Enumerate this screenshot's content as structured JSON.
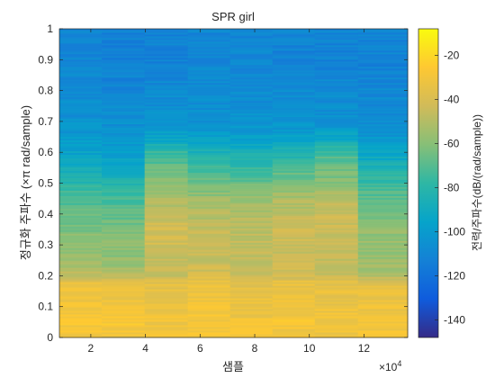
{
  "chart_data": {
    "type": "heatmap",
    "title": "SPR girl",
    "xlabel": "샘플",
    "ylabel": "정규화 주파수 (×π rad/sample)",
    "colorbar_label": "전력/주파수(dB/(rad/sample))",
    "x_exponent_label": "×10",
    "x_exponent_power": "4",
    "x_ticks": [
      2,
      4,
      6,
      8,
      10,
      12
    ],
    "x_tick_labels": [
      "2",
      "4",
      "6",
      "8",
      "10",
      "12"
    ],
    "xlim": [
      0.85,
      13.6
    ],
    "y_ticks": [
      0,
      0.1,
      0.2,
      0.3,
      0.4,
      0.5,
      0.6,
      0.7,
      0.8,
      0.9,
      1
    ],
    "y_tick_labels": [
      "0",
      "0.1",
      "0.2",
      "0.3",
      "0.4",
      "0.5",
      "0.6",
      "0.7",
      "0.8",
      "0.9",
      "1"
    ],
    "ylim": [
      0,
      1
    ],
    "colorbar_ticks": [
      -140,
      -120,
      -100,
      -80,
      -60,
      -40,
      -20
    ],
    "colorbar_tick_labels": [
      "-140",
      "-120",
      "-100",
      "-80",
      "-60",
      "-40",
      "-20"
    ],
    "clim": [
      -148,
      -8
    ],
    "colormap": "parula",
    "time_segments": [
      0.85,
      2.4,
      3.97,
      5.55,
      7.1,
      8.65,
      10.2,
      11.78,
      13.6
    ],
    "profile_frequency": [
      0.0,
      0.05,
      0.1,
      0.15,
      0.18,
      0.2,
      0.25,
      0.3,
      0.35,
      0.4,
      0.45,
      0.5,
      0.55,
      0.6,
      0.65,
      0.7,
      0.8,
      0.9,
      1.0
    ],
    "power_profiles": [
      [
        -32,
        -28,
        -30,
        -32,
        -34,
        -48,
        -56,
        -58,
        -62,
        -66,
        -72,
        -80,
        -90,
        -96,
        -100,
        -104,
        -108,
        -110,
        -110
      ],
      [
        -32,
        -28,
        -30,
        -32,
        -34,
        -50,
        -58,
        -60,
        -63,
        -68,
        -74,
        -82,
        -92,
        -98,
        -102,
        -106,
        -110,
        -114,
        -112
      ],
      [
        -32,
        -30,
        -32,
        -34,
        -36,
        -44,
        -46,
        -42,
        -42,
        -46,
        -52,
        -60,
        -68,
        -76,
        -96,
        -104,
        -108,
        -112,
        -112
      ],
      [
        -30,
        -28,
        -30,
        -32,
        -34,
        -40,
        -46,
        -44,
        -46,
        -50,
        -56,
        -66,
        -76,
        -86,
        -98,
        -104,
        -108,
        -110,
        -110
      ],
      [
        -30,
        -30,
        -32,
        -34,
        -36,
        -44,
        -48,
        -46,
        -48,
        -50,
        -56,
        -66,
        -76,
        -86,
        -98,
        -104,
        -108,
        -110,
        -110
      ],
      [
        -30,
        -28,
        -30,
        -32,
        -34,
        -42,
        -46,
        -44,
        -44,
        -48,
        -52,
        -62,
        -72,
        -84,
        -96,
        -104,
        -108,
        -112,
        -110
      ],
      [
        -32,
        -30,
        -32,
        -34,
        -36,
        -44,
        -48,
        -46,
        -44,
        -44,
        -50,
        -60,
        -66,
        -74,
        -94,
        -104,
        -108,
        -112,
        -110
      ],
      [
        -30,
        -30,
        -32,
        -34,
        -36,
        -50,
        -56,
        -56,
        -58,
        -62,
        -68,
        -76,
        -84,
        -96,
        -102,
        -106,
        -110,
        -112,
        -110
      ]
    ]
  }
}
